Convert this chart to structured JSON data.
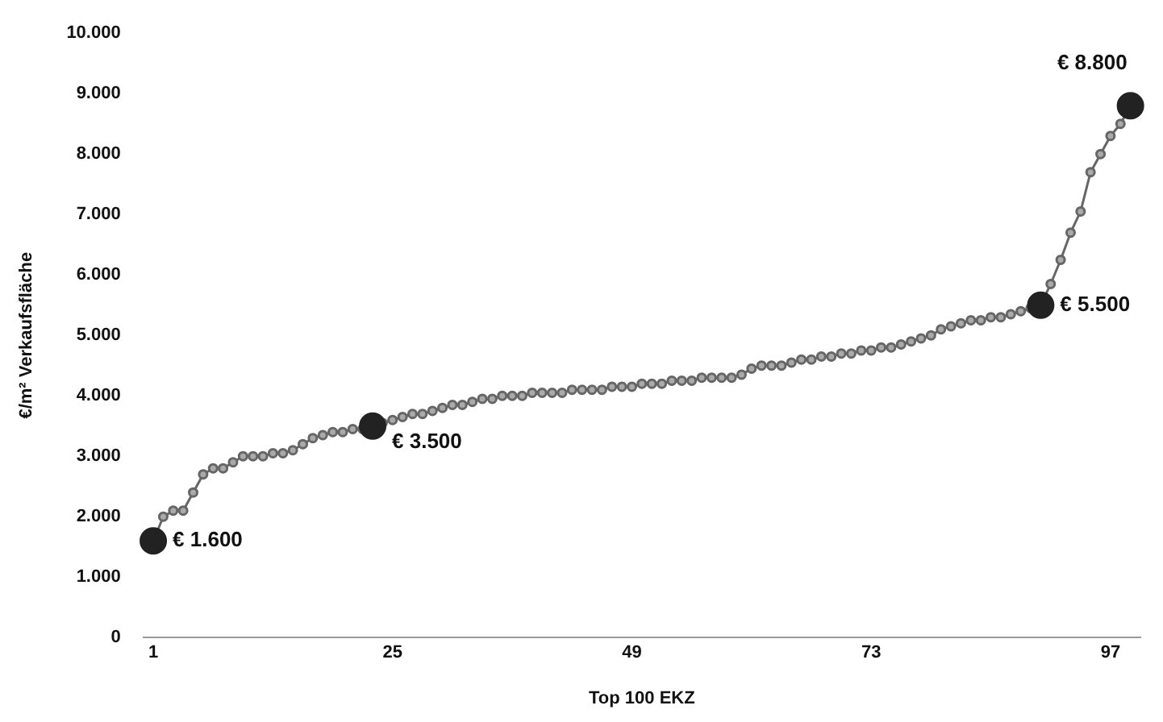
{
  "chart_data": {
    "type": "line",
    "xlabel": "Top 100 EKZ",
    "ylabel": "€/m² Verkaufsfläche",
    "x": [
      1,
      2,
      3,
      4,
      5,
      6,
      7,
      8,
      9,
      10,
      11,
      12,
      13,
      14,
      15,
      16,
      17,
      18,
      19,
      20,
      21,
      22,
      23,
      24,
      25,
      26,
      27,
      28,
      29,
      30,
      31,
      32,
      33,
      34,
      35,
      36,
      37,
      38,
      39,
      40,
      41,
      42,
      43,
      44,
      45,
      46,
      47,
      48,
      49,
      50,
      51,
      52,
      53,
      54,
      55,
      56,
      57,
      58,
      59,
      60,
      61,
      62,
      63,
      64,
      65,
      66,
      67,
      68,
      69,
      70,
      71,
      72,
      73,
      74,
      75,
      76,
      77,
      78,
      79,
      80,
      81,
      82,
      83,
      84,
      85,
      86,
      87,
      88,
      89,
      90,
      91,
      92,
      93,
      94,
      95,
      96,
      97,
      98,
      99
    ],
    "series": [
      {
        "color": "#666666",
        "values": [
          1600,
          2000,
          2100,
          2100,
          2400,
          2700,
          2800,
          2800,
          2900,
          3000,
          3000,
          3000,
          3050,
          3050,
          3100,
          3200,
          3300,
          3350,
          3400,
          3400,
          3450,
          3450,
          3500,
          3550,
          3600,
          3650,
          3700,
          3700,
          3750,
          3800,
          3850,
          3850,
          3900,
          3950,
          3950,
          4000,
          4000,
          4000,
          4050,
          4050,
          4050,
          4050,
          4100,
          4100,
          4100,
          4100,
          4150,
          4150,
          4150,
          4200,
          4200,
          4200,
          4250,
          4250,
          4250,
          4300,
          4300,
          4300,
          4300,
          4350,
          4450,
          4500,
          4500,
          4500,
          4550,
          4600,
          4600,
          4650,
          4650,
          4700,
          4700,
          4750,
          4750,
          4800,
          4800,
          4850,
          4900,
          4950,
          5000,
          5100,
          5150,
          5200,
          5250,
          5250,
          5300,
          5300,
          5350,
          5400,
          5450,
          5500,
          5850,
          6250,
          6700,
          7050,
          7700,
          8000,
          8300,
          8500,
          8800
        ]
      },
      {
        "type": "scatter",
        "color": "#222222",
        "x": [
          1,
          23,
          90,
          99
        ],
        "values": [
          1600,
          3500,
          5500,
          8800
        ]
      }
    ],
    "xlim": [
      0,
      100
    ],
    "xticks": [
      1,
      25,
      49,
      73,
      97
    ],
    "ylim": [
      0,
      10000
    ],
    "yticks": [
      {
        "value": 0,
        "label": "0"
      },
      {
        "value": 1000,
        "label": "1.000"
      },
      {
        "value": 2000,
        "label": "2.000"
      },
      {
        "value": 3000,
        "label": "3.000"
      },
      {
        "value": 4000,
        "label": "4.000"
      },
      {
        "value": 5000,
        "label": "5.000"
      },
      {
        "value": 6000,
        "label": "6.000"
      },
      {
        "value": 7000,
        "label": "7.000"
      },
      {
        "value": 8000,
        "label": "8.000"
      },
      {
        "value": 9000,
        "label": "9.000"
      },
      {
        "value": 10000,
        "label": "10.000"
      }
    ],
    "grid": false,
    "legend": false,
    "marker": "circle",
    "line_style": "solid",
    "annotations": [
      {
        "text": "€ 1.600",
        "x": 1,
        "y": 1600
      },
      {
        "text": "€ 3.500",
        "x": 23,
        "y": 3500
      },
      {
        "text": "€ 5.500",
        "x": 90,
        "y": 5500
      },
      {
        "text": "€ 8.800",
        "x": 99,
        "y": 8800
      }
    ]
  }
}
